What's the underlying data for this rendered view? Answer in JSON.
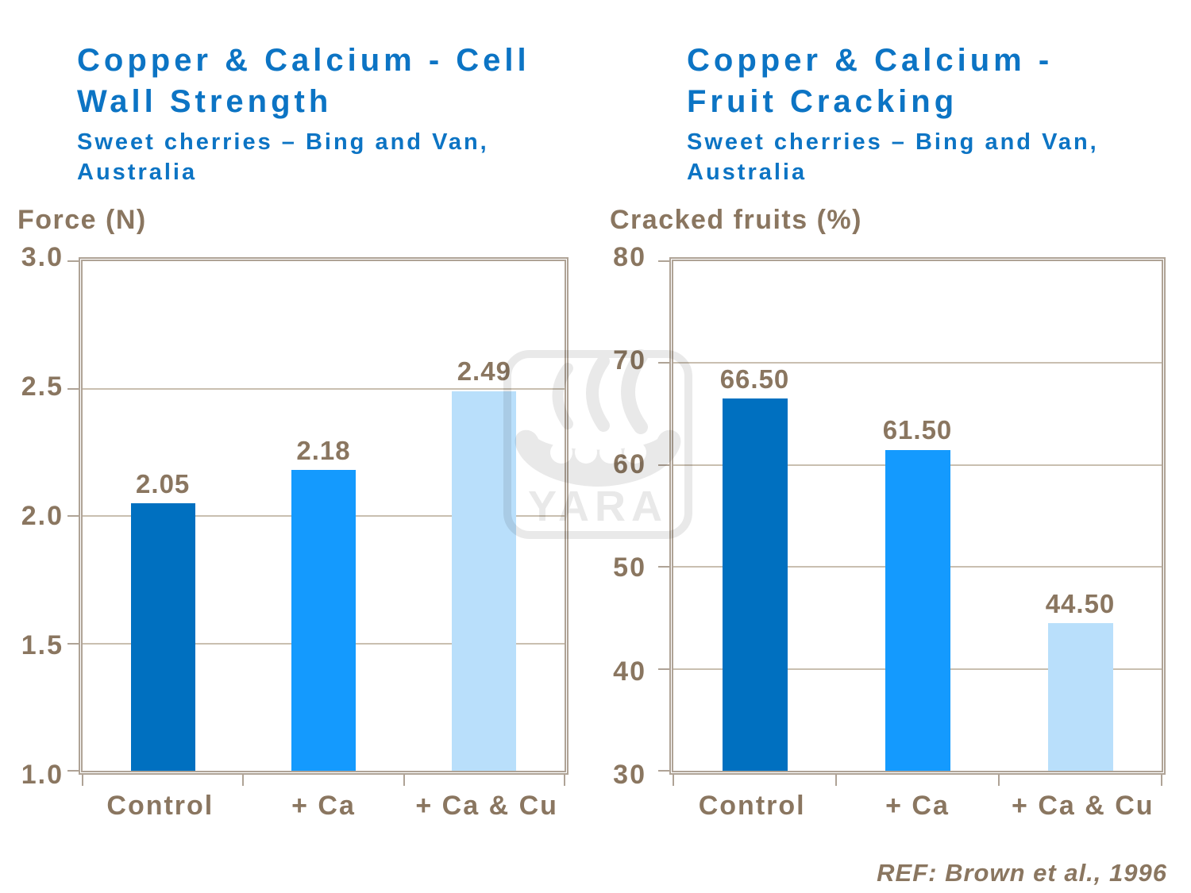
{
  "colors": {
    "title_blue": "#0C74C4",
    "axis_brown": "#8A7660",
    "frame_tan": "#AFA396",
    "gridline_tan": "#C9BFB0",
    "watermark_gray": "#E9E9E9",
    "bar_dark_blue": "#0070C0",
    "bar_mid_blue": "#149AFE",
    "bar_light_blue": "#B9DFFB",
    "background": "#FFFFFF"
  },
  "watermark": {
    "name": "yara-logo",
    "text": "YARA"
  },
  "footer": {
    "ref": "REF: Brown et al., 1996"
  },
  "chart_data": [
    {
      "type": "bar",
      "title": "Copper & Calcium - Cell\nWall Strength",
      "subtitle": "Sweet cherries – Bing and Van,\nAustralia",
      "ylabel": "Force (N)",
      "xlabel": "",
      "categories": [
        "Control",
        "+ Ca",
        "+ Ca & Cu"
      ],
      "values": [
        2.05,
        2.18,
        2.49
      ],
      "value_labels": [
        "2.05",
        "2.18",
        "2.49"
      ],
      "bar_colors": [
        "#0070C0",
        "#149AFE",
        "#B9DFFB"
      ],
      "ylim": [
        1.0,
        3.0
      ],
      "yticks": [
        {
          "value": 3.0,
          "label": "3.0"
        },
        {
          "value": 2.5,
          "label": "2.5"
        },
        {
          "value": 2.0,
          "label": "2.0"
        },
        {
          "value": 1.5,
          "label": "1.5"
        },
        {
          "value": 1.0,
          "label": "1.0"
        }
      ],
      "grid": true,
      "legend": false
    },
    {
      "type": "bar",
      "title": "Copper & Calcium -\nFruit Cracking",
      "subtitle": "Sweet cherries – Bing and Van,\nAustralia",
      "ylabel": "Cracked fruits (%)",
      "xlabel": "",
      "categories": [
        "Control",
        "+ Ca",
        "+ Ca & Cu"
      ],
      "values": [
        66.5,
        61.5,
        44.5
      ],
      "value_labels": [
        "66.50",
        "61.50",
        "44.50"
      ],
      "bar_colors": [
        "#0070C0",
        "#149AFE",
        "#B9DFFB"
      ],
      "ylim": [
        30,
        80
      ],
      "yticks": [
        {
          "value": 80,
          "label": "80"
        },
        {
          "value": 70,
          "label": "70"
        },
        {
          "value": 60,
          "label": "60"
        },
        {
          "value": 50,
          "label": "50"
        },
        {
          "value": 40,
          "label": "40"
        },
        {
          "value": 30,
          "label": "30"
        }
      ],
      "grid": true,
      "legend": false
    }
  ]
}
